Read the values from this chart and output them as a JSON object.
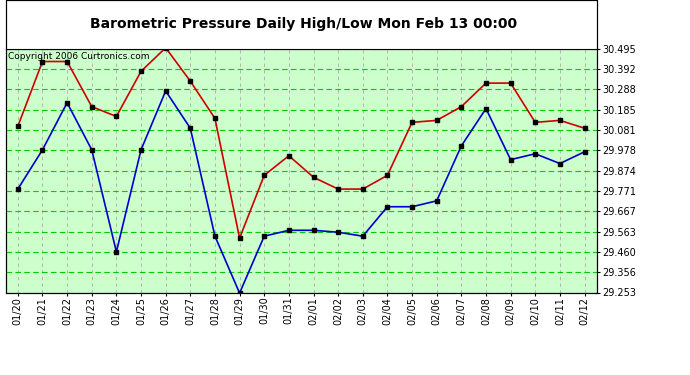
{
  "title": "Barometric Pressure Daily High/Low Mon Feb 13 00:00",
  "copyright": "Copyright 2006 Curtronics.com",
  "x_labels": [
    "01/20",
    "01/21",
    "01/22",
    "01/23",
    "01/24",
    "01/25",
    "01/26",
    "01/27",
    "01/28",
    "01/29",
    "01/30",
    "01/31",
    "02/01",
    "02/02",
    "02/03",
    "02/04",
    "02/05",
    "02/06",
    "02/07",
    "02/08",
    "02/09",
    "02/10",
    "02/11",
    "02/12"
  ],
  "high_values": [
    30.1,
    30.43,
    30.43,
    30.2,
    30.15,
    30.38,
    30.5,
    30.33,
    30.14,
    29.53,
    29.85,
    29.95,
    29.84,
    29.78,
    29.78,
    29.85,
    30.12,
    30.13,
    30.2,
    30.32,
    30.32,
    30.12,
    30.13,
    30.09
  ],
  "low_values": [
    29.78,
    29.98,
    30.22,
    29.98,
    29.46,
    29.98,
    30.28,
    30.09,
    29.54,
    29.25,
    29.54,
    29.57,
    29.57,
    29.56,
    29.54,
    29.69,
    29.69,
    29.72,
    30.0,
    30.19,
    29.93,
    29.96,
    29.91,
    29.97
  ],
  "high_color": "#cc0000",
  "low_color": "#0000cc",
  "marker_color": "#000000",
  "bg_color": "#ccffcc",
  "grid_green_color": "#00cc00",
  "grid_gray_color": "#aaaaaa",
  "border_color": "#000000",
  "title_color": "#000000",
  "title_bg": "#ffffff",
  "y_min": 29.253,
  "y_max": 30.495,
  "y_ticks": [
    29.253,
    29.356,
    29.46,
    29.563,
    29.667,
    29.771,
    29.874,
    29.978,
    30.081,
    30.185,
    30.288,
    30.392,
    30.495
  ],
  "figwidth": 6.9,
  "figheight": 3.75,
  "dpi": 100
}
